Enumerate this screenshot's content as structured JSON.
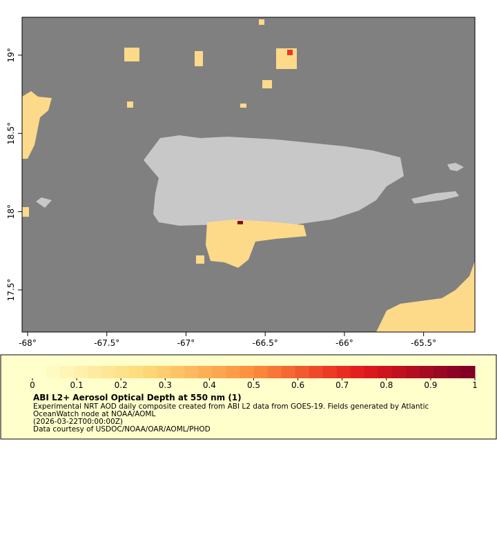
{
  "chart_data": {
    "type": "map",
    "xlim": [
      -68.035,
      -65.176
    ],
    "ylim": [
      17.231,
      19.242
    ],
    "xticks": [
      {
        "value": -68,
        "label": "-68°"
      },
      {
        "value": -67.5,
        "label": "-67.5°"
      },
      {
        "value": -67,
        "label": "-67°"
      },
      {
        "value": -66.5,
        "label": "-66.5°"
      },
      {
        "value": -66,
        "label": "-66°"
      },
      {
        "value": -65.5,
        "label": "-65.5°"
      }
    ],
    "yticks": [
      {
        "value": 19,
        "label": "19°"
      },
      {
        "value": 18.5,
        "label": "18.5°"
      },
      {
        "value": 18,
        "label": "18°"
      },
      {
        "value": 17.5,
        "label": "17.5°"
      }
    ],
    "colorbar": {
      "range": [
        0,
        1
      ],
      "ticks": [
        0,
        0.1,
        0.2,
        0.3,
        0.4,
        0.5,
        0.6,
        0.7,
        0.8,
        0.9,
        1
      ],
      "colormap": [
        "#ffffcc",
        "#fed976",
        "#fd8d3c",
        "#e31a1c",
        "#800026"
      ],
      "steps": 32
    },
    "title": "ABI L2+ Aerosol Optical Depth at 550 nm (1)",
    "description": [
      "Experimental NRT AOD daily composite created from ABI L2 data from GOES-19. Fields generated by Atlantic",
      "OceanWatch node at NOAA/AOML",
      "(2026-03-22T00:00:00Z)",
      "Data courtesy of USDOC/NOAA/OAR/AOML/PHOD"
    ]
  }
}
